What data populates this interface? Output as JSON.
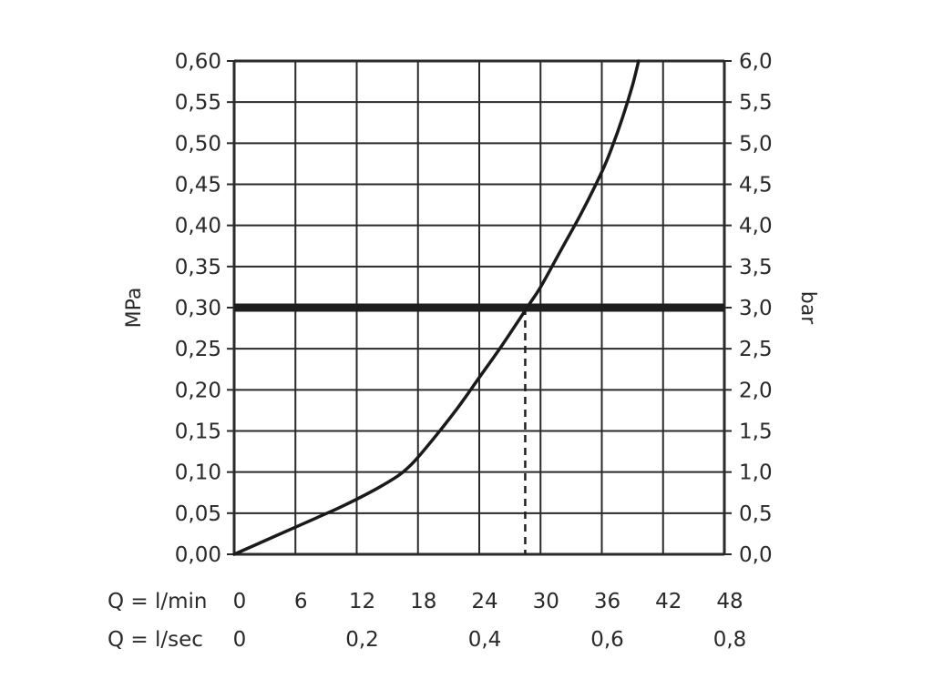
{
  "chart_data": {
    "type": "line",
    "title": "",
    "ylabel_left": "MPa",
    "ylabel_right": "bar",
    "x_axis_primary_label": "Q = l/min",
    "x_axis_secondary_label": "Q = l/sec",
    "xlim": [
      0,
      48
    ],
    "ylim": [
      0,
      0.6
    ],
    "grid": true,
    "x_ticks_lmin": [
      "0",
      "6",
      "12",
      "18",
      "24",
      "30",
      "36",
      "42",
      "48"
    ],
    "x_ticks_lsec": [
      {
        "value": 0,
        "label": "0"
      },
      {
        "value": 12,
        "label": "0,2"
      },
      {
        "value": 24,
        "label": "0,4"
      },
      {
        "value": 36,
        "label": "0,6"
      },
      {
        "value": 48,
        "label": "0,8"
      }
    ],
    "y_ticks_left": [
      "0,00",
      "0,05",
      "0,10",
      "0,15",
      "0,20",
      "0,25",
      "0,30",
      "0,35",
      "0,40",
      "0,45",
      "0,50",
      "0,55",
      "0,60"
    ],
    "y_ticks_right": [
      "0,0",
      "0,5",
      "1,0",
      "1,5",
      "2,0",
      "2,5",
      "3,0",
      "3,5",
      "4,0",
      "4,5",
      "5,0",
      "5,5",
      "6,0"
    ],
    "series": [
      {
        "x": [
          0,
          2,
          4,
          6,
          8,
          10,
          12,
          14,
          16,
          17,
          18,
          20,
          22,
          24,
          26,
          28,
          29,
          30,
          32,
          34,
          36,
          37,
          38,
          39,
          39.6
        ],
        "y": [
          0,
          0.011,
          0.022,
          0.033,
          0.044,
          0.055,
          0.067,
          0.08,
          0.095,
          0.105,
          0.118,
          0.148,
          0.18,
          0.215,
          0.25,
          0.287,
          0.306,
          0.325,
          0.37,
          0.415,
          0.465,
          0.495,
          0.53,
          0.57,
          0.6
        ]
      }
    ],
    "reference_line": {
      "y": 0.3,
      "style": "bold"
    },
    "dashed_drop": {
      "x": 28.5,
      "y": 0.3
    }
  },
  "colors": {
    "grid": "#2a2a2a",
    "curve": "#1a1a1a",
    "reference": "#1e1e1e",
    "text": "#2a2a2a"
  }
}
